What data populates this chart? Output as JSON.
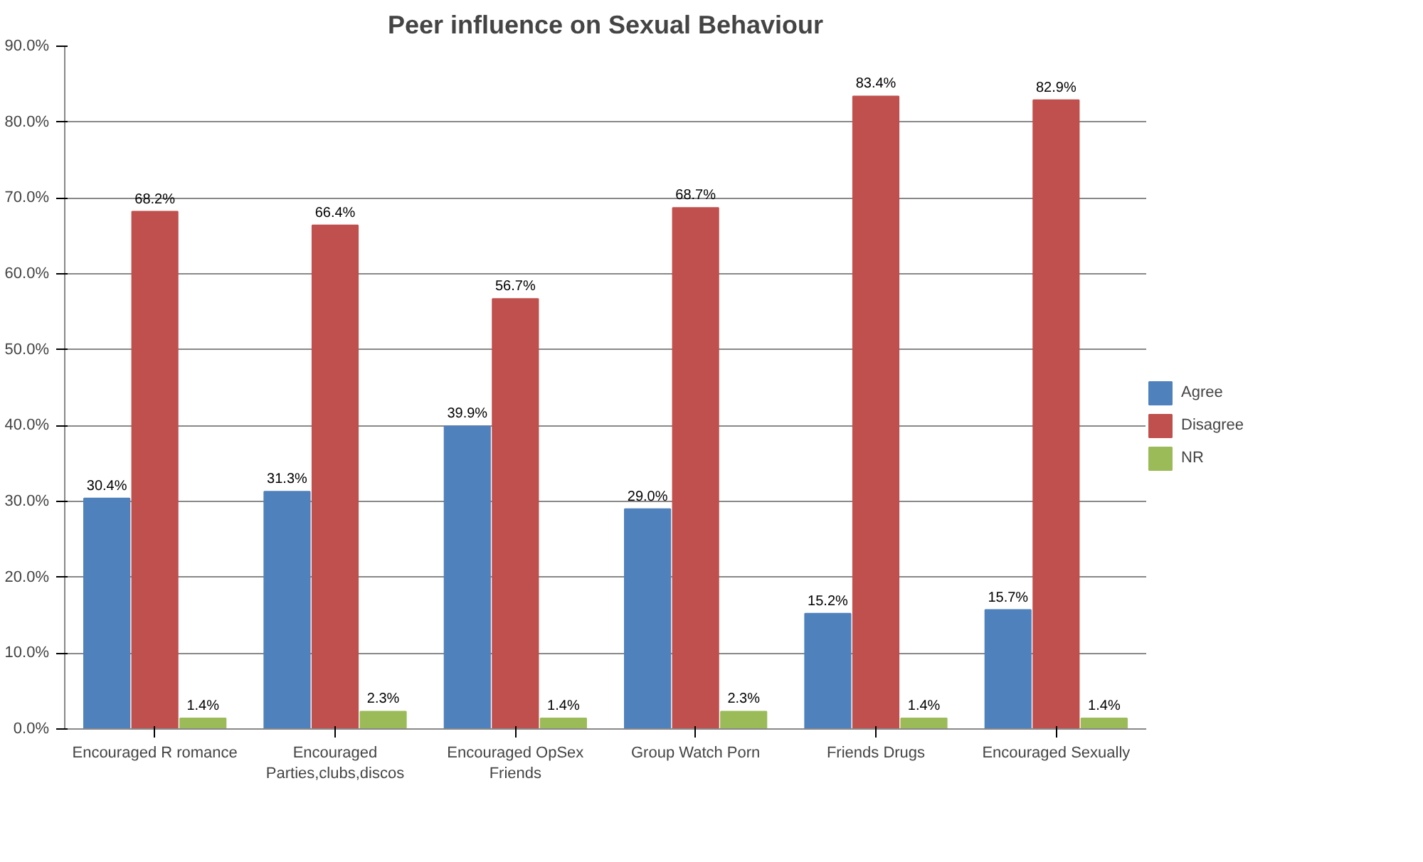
{
  "chart_data": {
    "type": "bar",
    "title": "Peer influence on Sexual Behaviour",
    "categories": [
      "Encouraged R romance",
      "Encouraged Parties,clubs,discos",
      "Encouraged OpSex Friends",
      "Group Watch Porn",
      "Friends Drugs",
      "Encouraged Sexually"
    ],
    "series": [
      {
        "name": "Agree",
        "color": "#4f81bd",
        "values": [
          30.4,
          31.3,
          39.9,
          29.0,
          15.2,
          15.7
        ],
        "value_labels": [
          "30.4%",
          "31.3%",
          "39.9%",
          "29.0%",
          "15.2%",
          "15.7%"
        ]
      },
      {
        "name": "Disagree",
        "color": "#c0504d",
        "values": [
          68.2,
          66.4,
          56.7,
          68.7,
          83.4,
          82.9
        ],
        "value_labels": [
          "68.2%",
          "66.4%",
          "56.7%",
          "68.7%",
          "83.4%",
          "82.9%"
        ]
      },
      {
        "name": "NR",
        "color": "#9bbb59",
        "values": [
          1.4,
          2.3,
          1.4,
          2.3,
          1.4,
          1.4
        ],
        "value_labels": [
          "1.4%",
          "2.3%",
          "1.4%",
          "2.3%",
          "1.4%",
          "1.4%"
        ]
      }
    ],
    "ylim": [
      0,
      90
    ],
    "yticks": [
      {
        "value": 0,
        "label": "0.0%"
      },
      {
        "value": 10,
        "label": "10.0%"
      },
      {
        "value": 20,
        "label": "20.0%"
      },
      {
        "value": 30,
        "label": "30.0%"
      },
      {
        "value": 40,
        "label": "40.0%"
      },
      {
        "value": 50,
        "label": "50.0%"
      },
      {
        "value": 60,
        "label": "60.0%"
      },
      {
        "value": 70,
        "label": "70.0%"
      },
      {
        "value": 80,
        "label": "80.0%"
      },
      {
        "value": 90,
        "label": "90.0%"
      }
    ],
    "grid": "y",
    "legend": "right"
  }
}
